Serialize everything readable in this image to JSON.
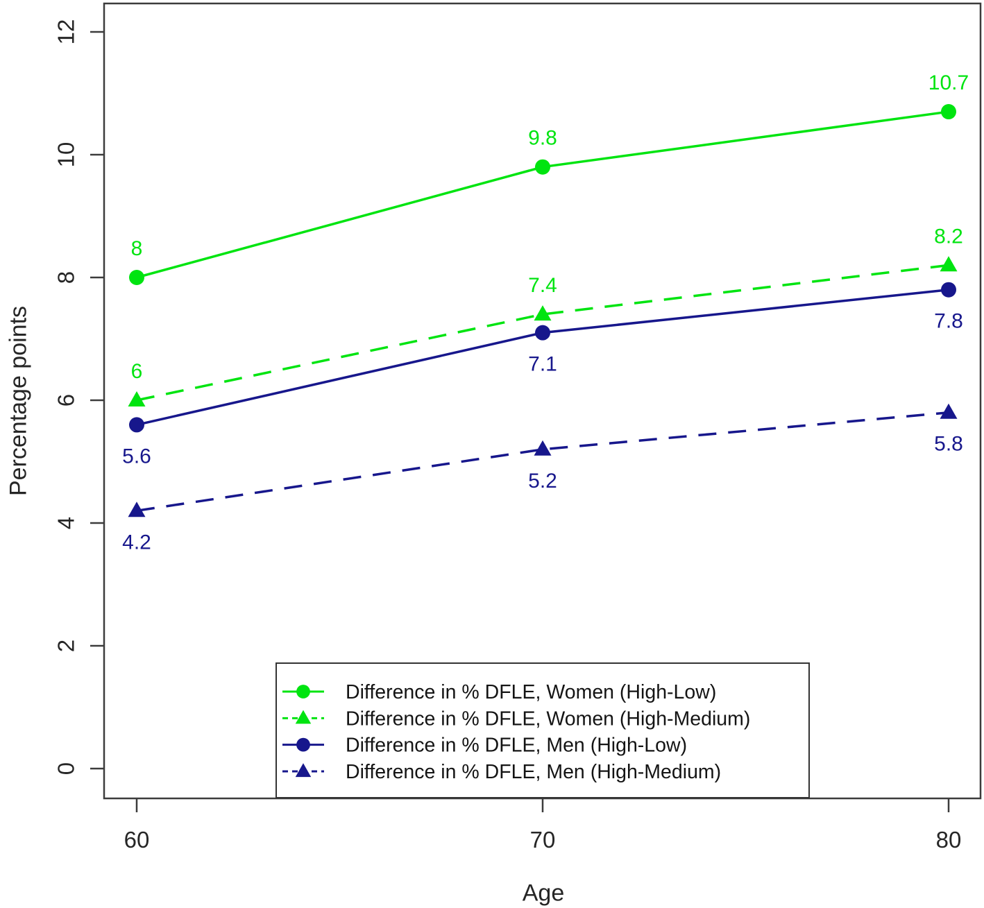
{
  "chart_data": {
    "type": "line",
    "title": "",
    "xlabel": "Age",
    "ylabel": "Percentage points",
    "x": [
      60,
      70,
      80
    ],
    "xticks": [
      60,
      70,
      80
    ],
    "yticks": [
      0,
      2,
      4,
      6,
      8,
      10,
      12
    ],
    "ylim": [
      0,
      12
    ],
    "xlim": [
      60,
      80
    ],
    "grid": false,
    "legend": {
      "position": "inside-bottom-center",
      "border": true
    },
    "colors": {
      "green": "#00E410",
      "navy": "#17178C",
      "axis": "#3c3c3c",
      "text": "#262626",
      "legend_border": "#333333",
      "background": "#ffffff"
    },
    "series": [
      {
        "name": "Difference in % DFLE, Women (High-Low)",
        "values": [
          8,
          9.8,
          10.7
        ],
        "labels": [
          "8",
          "9.8",
          "10.7"
        ],
        "color": "#00E410",
        "line_style": "solid",
        "marker": "circle",
        "label_position": "above"
      },
      {
        "name": "Difference in % DFLE, Women (High-Medium)",
        "values": [
          6,
          7.4,
          8.2
        ],
        "labels": [
          "6",
          "7.4",
          "8.2"
        ],
        "color": "#00E410",
        "line_style": "dashed",
        "marker": "triangle",
        "label_position": "above"
      },
      {
        "name": "Difference in % DFLE, Men (High-Low)",
        "values": [
          5.6,
          7.1,
          7.8
        ],
        "labels": [
          "5.6",
          "7.1",
          "7.8"
        ],
        "color": "#17178C",
        "line_style": "solid",
        "marker": "circle",
        "label_position": "below"
      },
      {
        "name": "Difference in % DFLE, Men (High-Medium)",
        "values": [
          4.2,
          5.2,
          5.8
        ],
        "labels": [
          "4.2",
          "5.2",
          "5.8"
        ],
        "color": "#17178C",
        "line_style": "dashed",
        "marker": "triangle",
        "label_position": "below"
      }
    ]
  }
}
